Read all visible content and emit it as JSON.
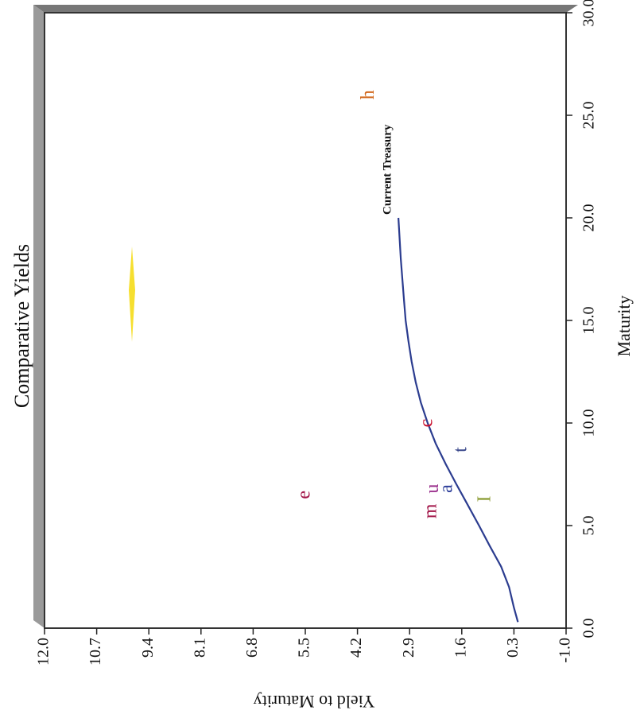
{
  "chart_data": {
    "type": "scatter",
    "title": "Comparative Yields",
    "xlabel": "Maturity",
    "ylabel": "Yield to Maturity",
    "xlim": [
      0,
      30
    ],
    "ylim": [
      -1,
      12
    ],
    "x_ticks": [
      "0.0",
      "5.0",
      "10.0",
      "15.0",
      "20.0",
      "25.0",
      "30.0"
    ],
    "y_ticks": [
      "-1.0",
      "0.3",
      "1.6",
      "2.9",
      "4.2",
      "5.5",
      "6.8",
      "8.1",
      "9.4",
      "10.7",
      "12.0"
    ],
    "series": [
      {
        "name": "Current Treasury",
        "type": "line",
        "color": "#2b3c8f",
        "x": [
          0.3,
          1,
          2,
          3,
          4,
          5,
          6,
          7,
          8,
          9,
          10,
          11,
          12,
          13,
          14,
          15,
          16,
          17,
          18,
          19,
          20
        ],
        "y": [
          0.2,
          0.3,
          0.42,
          0.62,
          0.9,
          1.17,
          1.45,
          1.73,
          2.0,
          2.25,
          2.45,
          2.62,
          2.75,
          2.85,
          2.93,
          3.0,
          3.04,
          3.08,
          3.12,
          3.15,
          3.18
        ]
      }
    ],
    "points": [
      {
        "label": "e",
        "x": 6.5,
        "y": 5.5,
        "color": "#a3174a"
      },
      {
        "label": "m",
        "x": 5.7,
        "y": 2.35,
        "color": "#a3174a"
      },
      {
        "label": "u",
        "x": 6.8,
        "y": 2.3,
        "color": "#9a2f8c"
      },
      {
        "label": "a",
        "x": 6.8,
        "y": 1.95,
        "color": "#2e3f9a"
      },
      {
        "label": "c",
        "x": 10.0,
        "y": 2.45,
        "color": "#c8102e"
      },
      {
        "label": "t",
        "x": 8.7,
        "y": 1.6,
        "color": "#3c4a8c"
      },
      {
        "label": "I",
        "x": 6.3,
        "y": 1.0,
        "color": "#8a9a30"
      },
      {
        "label": "h",
        "x": 26.0,
        "y": 3.9,
        "color": "#d2691e"
      }
    ],
    "annotations": [
      {
        "text": "Current Treasury",
        "x": 20.0,
        "y": 3.2
      }
    ],
    "grid": false
  }
}
